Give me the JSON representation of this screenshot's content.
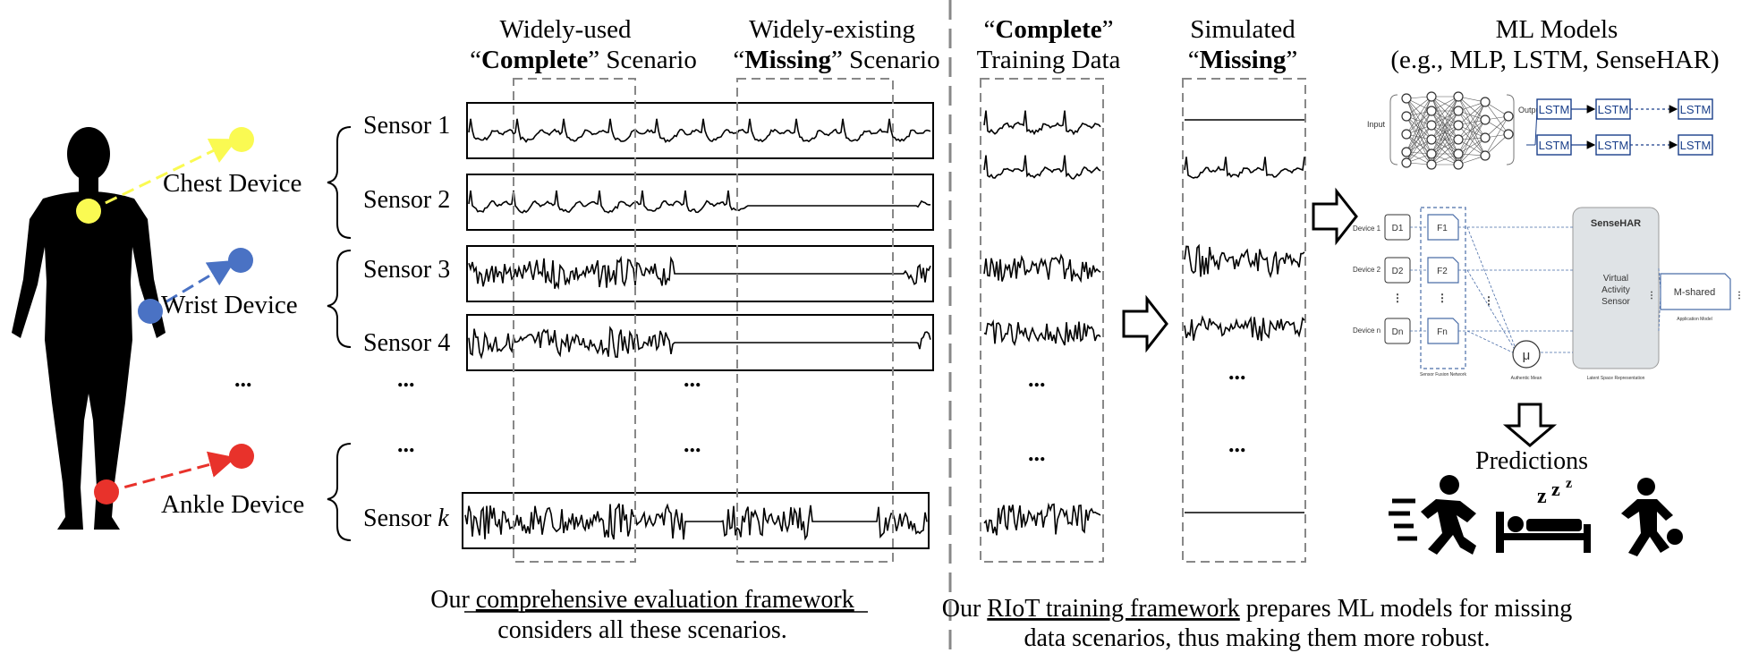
{
  "left_headers": {
    "col1": {
      "line1": "Widely-used",
      "q_open": "“",
      "bold": "Complete",
      "q_close": "” Scenario"
    },
    "col2": {
      "line1": "Widely-existing",
      "q_open": "“",
      "bold": "Missing",
      "q_close": "” Scenario"
    }
  },
  "devices": [
    "Chest Device",
    "Wrist Device",
    "Ankle Device"
  ],
  "sensors": [
    "Sensor 1",
    "Sensor 2",
    "Sensor 3",
    "Sensor 4",
    "Sensor "
  ],
  "sensor_k_var": "k",
  "ellipsis": "...",
  "left_caption": {
    "underlined": "comprehensive evaluation framework",
    "prefix": "Our ",
    "line2": "considers all these scenarios."
  },
  "right_headers": {
    "complete_training": {
      "q_open": "“",
      "bold": "Complete",
      "q_close": "”",
      "line2": "Training Data"
    },
    "simulated_missing": {
      "line1": "Simulated",
      "q_open": "“",
      "bold": "Missing",
      "q_close": "”"
    },
    "ml_models": {
      "line1": "ML Models",
      "line2": "(e.g., MLP, LSTM, SenseHAR)"
    }
  },
  "lstm_label": "LSTM",
  "sensehar": {
    "title": "SenseHAR",
    "virtual": [
      "Virtual",
      "Activity",
      "Sensor"
    ],
    "devices": [
      "Device 1",
      "Device 2",
      "Device n"
    ],
    "d_boxes": [
      "D1",
      "D2",
      "Dn"
    ],
    "mshared": "M-shared",
    "mu": "μ",
    "f_labels": [
      "F1",
      "F2",
      "Fn"
    ],
    "small_labels": [
      "Sensor Fusion Network",
      "Authentic Mean",
      "Latent Space Representation",
      "Application Model"
    ]
  },
  "mlp_labels": {
    "input": "Input",
    "output": "Output"
  },
  "predictions": "Predictions",
  "right_caption": {
    "prefix": "Our ",
    "underlined": "RIoT training framework",
    "rest": " prepares ML models for missing",
    "line2": "data scenarios, thus making them more robust."
  },
  "colors": {
    "chest": "#fafa52",
    "wrist": "#4a72c4",
    "ankle": "#e8322b"
  }
}
